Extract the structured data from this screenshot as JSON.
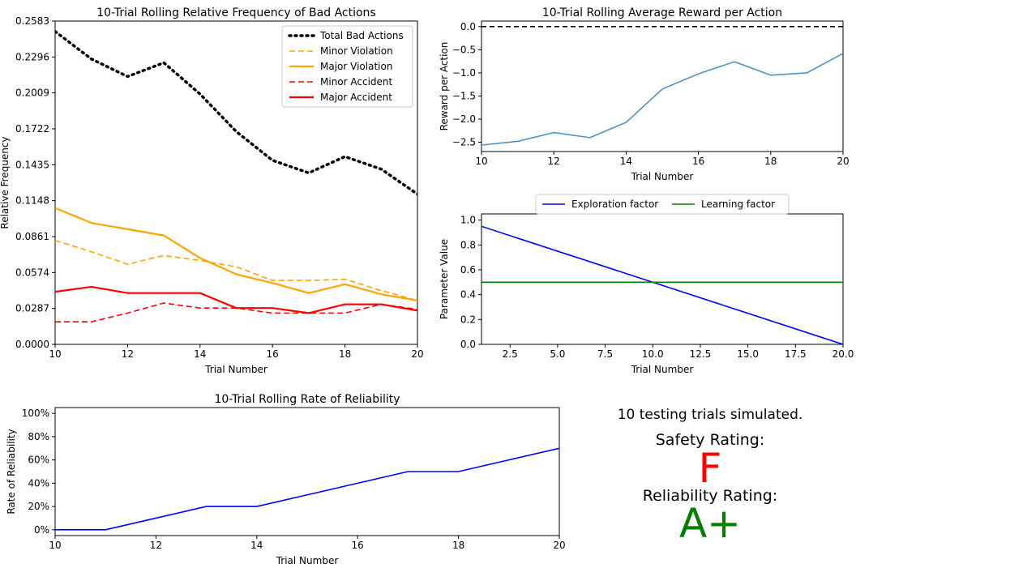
{
  "chart_data": [
    {
      "type": "line",
      "title": "10-Trial Rolling Relative Frequency of Bad Actions",
      "xlabel": "Trial Number",
      "ylabel": "Relative Frequency",
      "xlim": [
        10,
        20
      ],
      "ylim": [
        0,
        0.2583
      ],
      "xticks": [
        10,
        12,
        14,
        16,
        18,
        20
      ],
      "yticks": [
        0.0,
        0.0287,
        0.0574,
        0.0861,
        0.1148,
        0.1435,
        0.1722,
        0.2009,
        0.2296,
        0.2583
      ],
      "ytick_labels": [
        "0.0000",
        "0.0287",
        "0.0574",
        "0.0861",
        "0.1148",
        "0.1435",
        "0.1722",
        "0.2009",
        "0.2296",
        "0.2583"
      ],
      "legend": "top-right",
      "x": [
        10,
        11,
        12,
        13,
        14,
        15,
        16,
        17,
        18,
        19,
        20
      ],
      "series": [
        {
          "name": "Total Bad Actions",
          "color": "#000000",
          "style": "dotted",
          "values": [
            0.25,
            0.228,
            0.214,
            0.225,
            0.2,
            0.17,
            0.147,
            0.137,
            0.15,
            0.14,
            0.12
          ]
        },
        {
          "name": "Minor Violation",
          "color": "#FFA500",
          "style": "dashed",
          "values": [
            0.083,
            0.074,
            0.064,
            0.071,
            0.067,
            0.062,
            0.051,
            0.051,
            0.052,
            0.043,
            0.035
          ]
        },
        {
          "name": "Major Violation",
          "color": "#FFA500",
          "style": "solid",
          "values": [
            0.109,
            0.097,
            0.092,
            0.087,
            0.069,
            0.056,
            0.049,
            0.041,
            0.048,
            0.04,
            0.035
          ]
        },
        {
          "name": "Minor Accident",
          "color": "#FF0000",
          "style": "dashed",
          "values": [
            0.018,
            0.018,
            0.025,
            0.033,
            0.029,
            0.029,
            0.025,
            0.025,
            0.025,
            0.032,
            0.028
          ]
        },
        {
          "name": "Major Accident",
          "color": "#FF0000",
          "style": "solid",
          "values": [
            0.042,
            0.046,
            0.041,
            0.041,
            0.041,
            0.029,
            0.029,
            0.025,
            0.032,
            0.032,
            0.027
          ]
        }
      ]
    },
    {
      "type": "line",
      "title": "10-Trial Rolling Average Reward per Action",
      "xlabel": "Trial Number",
      "ylabel": "Reward per Action",
      "xlim": [
        10,
        20
      ],
      "ylim": [
        -2.7,
        0.12
      ],
      "xticks": [
        10,
        12,
        14,
        16,
        18,
        20
      ],
      "yticks": [
        0.0,
        -0.5,
        -1.0,
        -1.5,
        -2.0,
        -2.5
      ],
      "ytick_labels": [
        "0.0",
        "−0.5",
        "−1.0",
        "−1.5",
        "−2.0",
        "−2.5"
      ],
      "baseline": {
        "y": 0,
        "color": "#000000",
        "style": "dashed"
      },
      "x": [
        10,
        11,
        12,
        13,
        14,
        15,
        16,
        17,
        18,
        19,
        20
      ],
      "series": [
        {
          "color": "#4C93C3",
          "style": "solid",
          "values": [
            -2.56,
            -2.48,
            -2.29,
            -2.4,
            -2.07,
            -1.35,
            -1.02,
            -0.76,
            -1.05,
            -1.0,
            -0.58
          ]
        }
      ]
    },
    {
      "type": "line",
      "xlabel": "Trial Number",
      "ylabel": "Parameter Value",
      "xlim": [
        1,
        20
      ],
      "ylim": [
        0,
        1.05
      ],
      "xticks": [
        2.5,
        5.0,
        7.5,
        10.0,
        12.5,
        15.0,
        17.5,
        20.0
      ],
      "xtick_labels": [
        "2.5",
        "5.0",
        "7.5",
        "10.0",
        "12.5",
        "15.0",
        "17.5",
        "20.0"
      ],
      "yticks": [
        0.0,
        0.2,
        0.4,
        0.6,
        0.8,
        1.0
      ],
      "ytick_labels": [
        "0.0",
        "0.2",
        "0.4",
        "0.6",
        "0.8",
        "1.0"
      ],
      "legend": "top-center",
      "series": [
        {
          "name": "Exploration factor",
          "color": "#0000FF",
          "style": "solid",
          "x": [
            1,
            20
          ],
          "values": [
            0.95,
            0.0
          ]
        },
        {
          "name": "Learning factor",
          "color": "#008000",
          "style": "solid",
          "x": [
            1,
            20
          ],
          "values": [
            0.5,
            0.5
          ]
        }
      ]
    },
    {
      "type": "line",
      "title": "10-Trial Rolling Rate of Reliability",
      "xlabel": "Trial Number",
      "ylabel": "Rate of Reliability",
      "xlim": [
        10,
        20
      ],
      "ylim": [
        -5,
        105
      ],
      "xticks": [
        10,
        12,
        14,
        16,
        18,
        20
      ],
      "yticks": [
        0,
        20,
        40,
        60,
        80,
        100
      ],
      "ytick_labels": [
        "0%",
        "20%",
        "40%",
        "60%",
        "80%",
        "100%"
      ],
      "x": [
        10,
        11,
        12,
        13,
        14,
        15,
        16,
        17,
        18,
        19,
        20
      ],
      "series": [
        {
          "color": "#0000FF",
          "style": "solid",
          "values": [
            0,
            0,
            10,
            20,
            20,
            30,
            40,
            50,
            50,
            60,
            70
          ]
        }
      ]
    }
  ],
  "summary": {
    "trials_text": "10 testing trials simulated.",
    "safety_label": "Safety Rating:",
    "safety_grade": "F",
    "safety_color": "#FF0000",
    "reliability_label": "Reliability Rating:",
    "reliability_grade": "A+",
    "reliability_color": "#008000"
  }
}
